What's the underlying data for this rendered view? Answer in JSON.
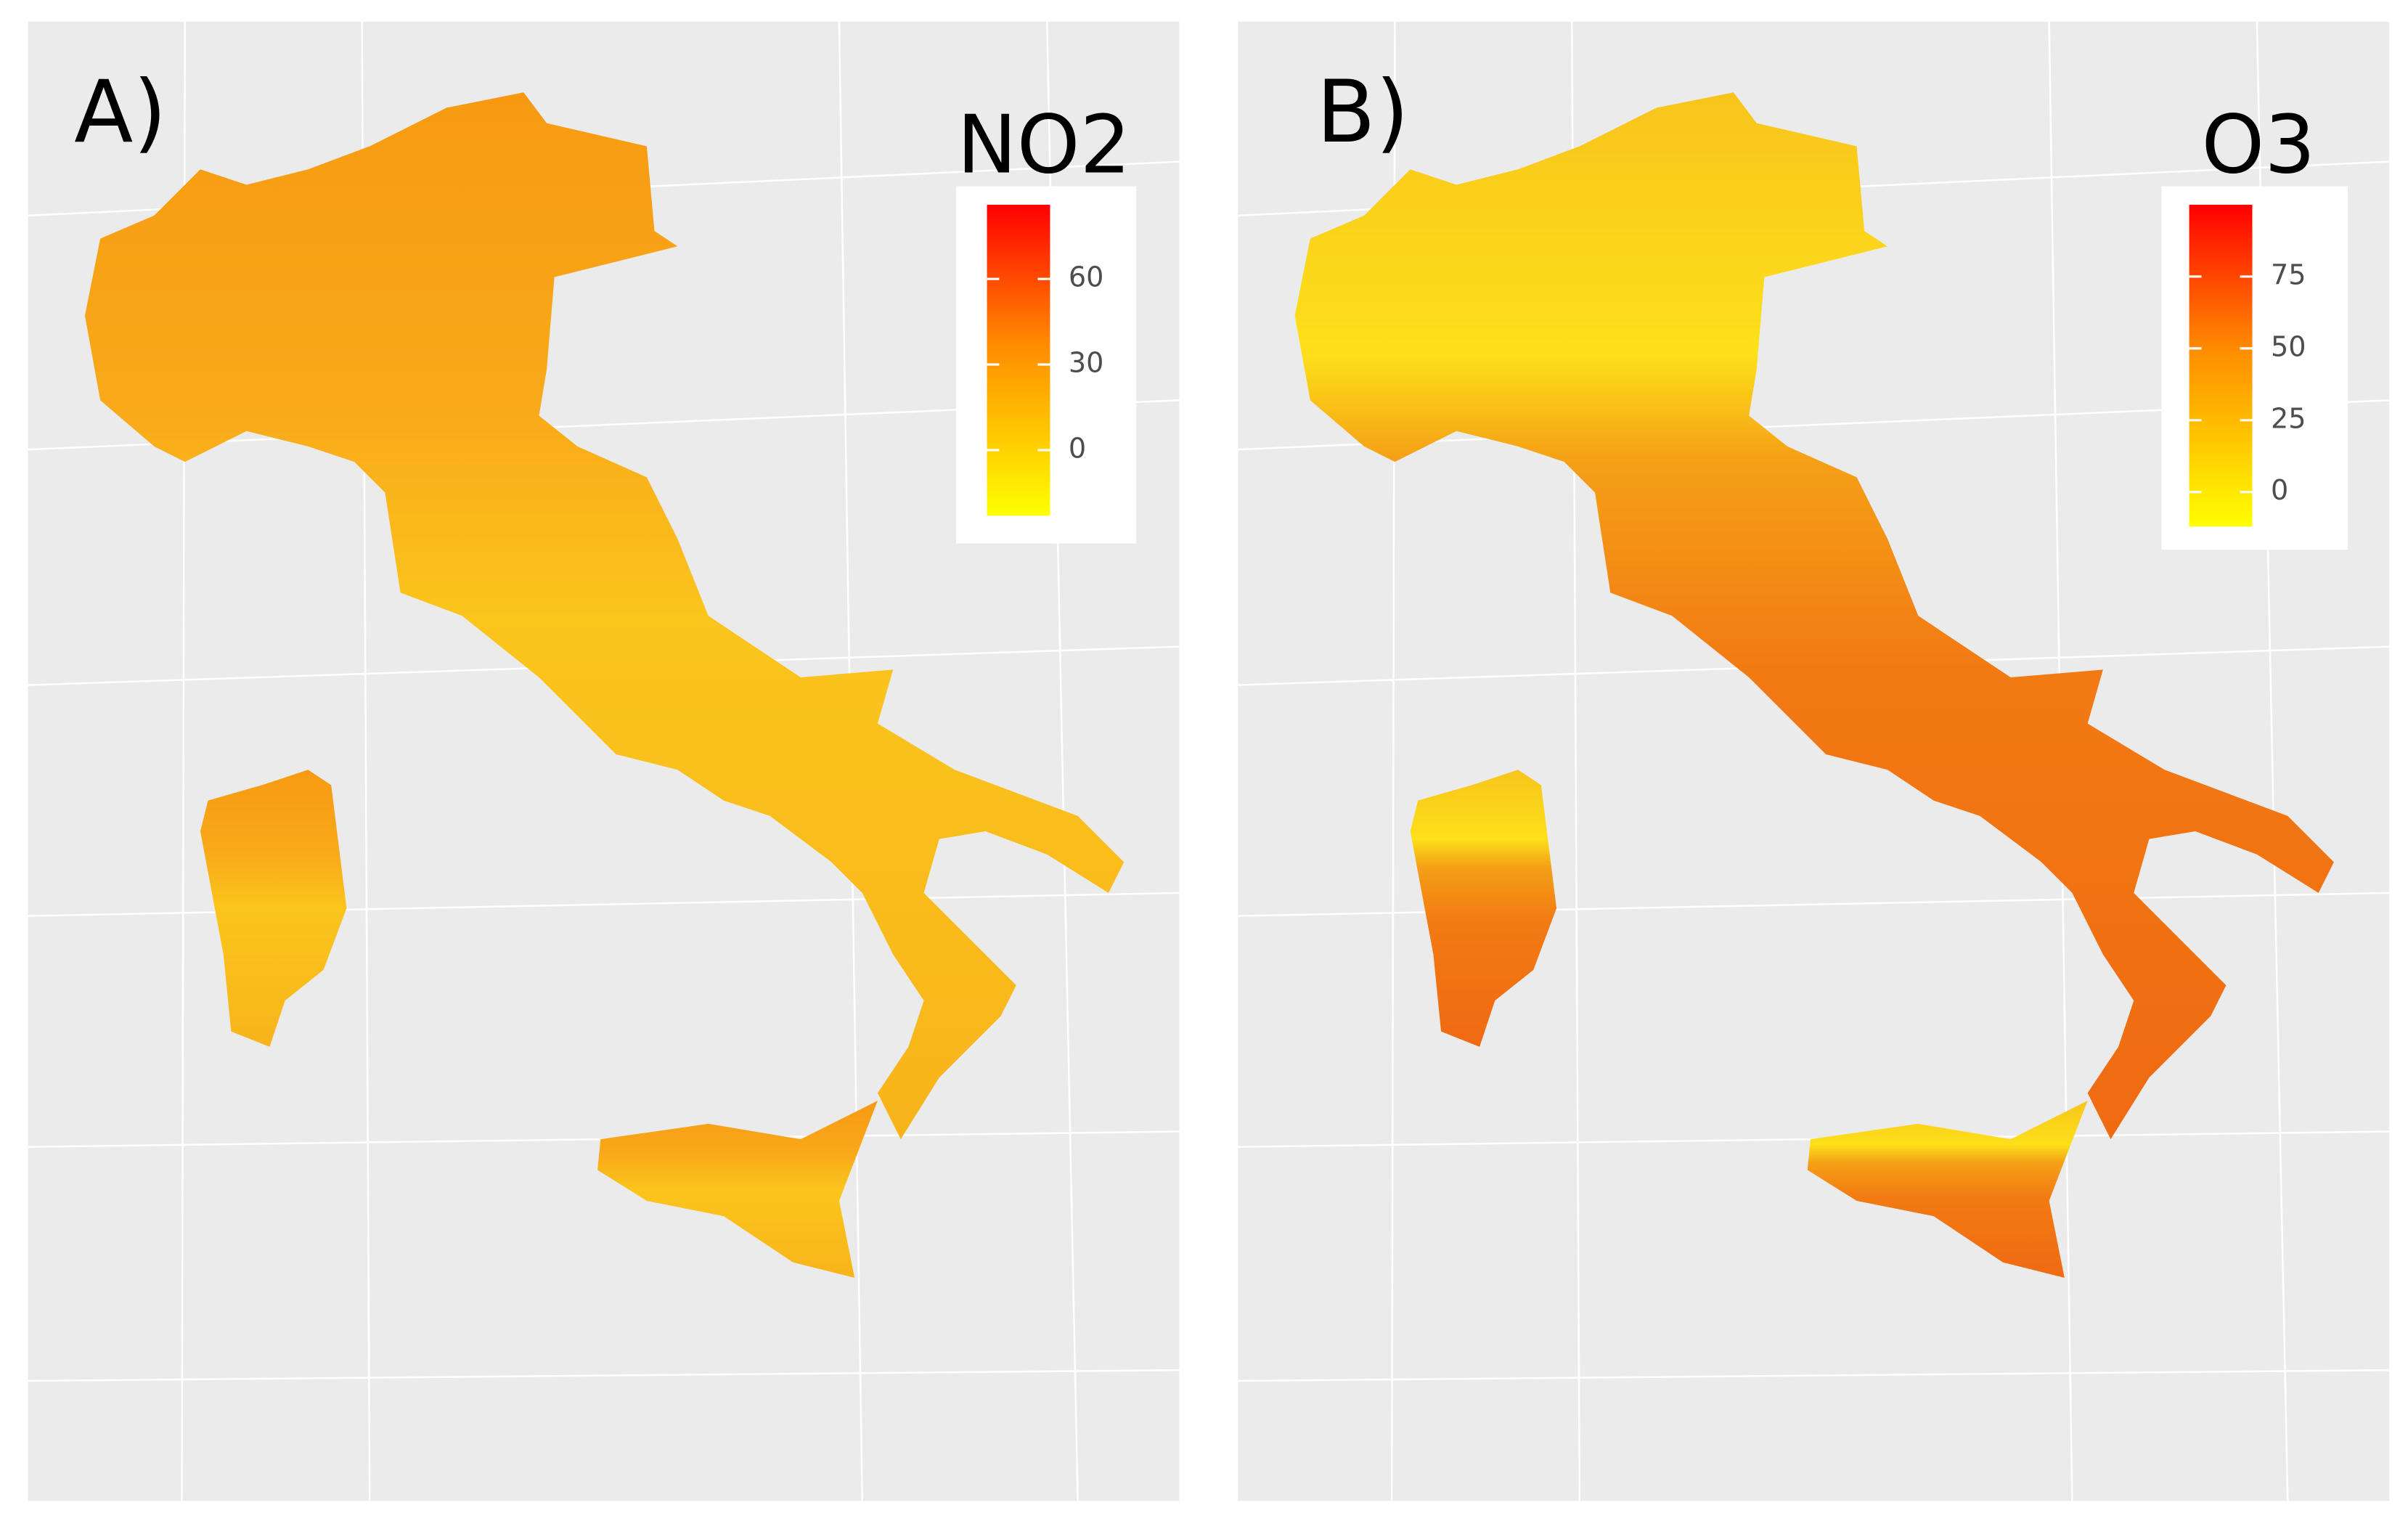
{
  "panels": [
    {
      "label": "A)",
      "legend": {
        "title": "NO2",
        "lim": [
          -23,
          86
        ],
        "ticks": [
          0,
          30,
          60
        ],
        "low_color": "#ffff00",
        "high_color": "#ff0000"
      }
    },
    {
      "label": "B)",
      "legend": {
        "title": "O3",
        "lim": [
          -12,
          100
        ],
        "ticks": [
          0,
          25,
          50,
          75
        ],
        "low_color": "#ffff00",
        "high_color": "#ff0000"
      }
    }
  ]
}
